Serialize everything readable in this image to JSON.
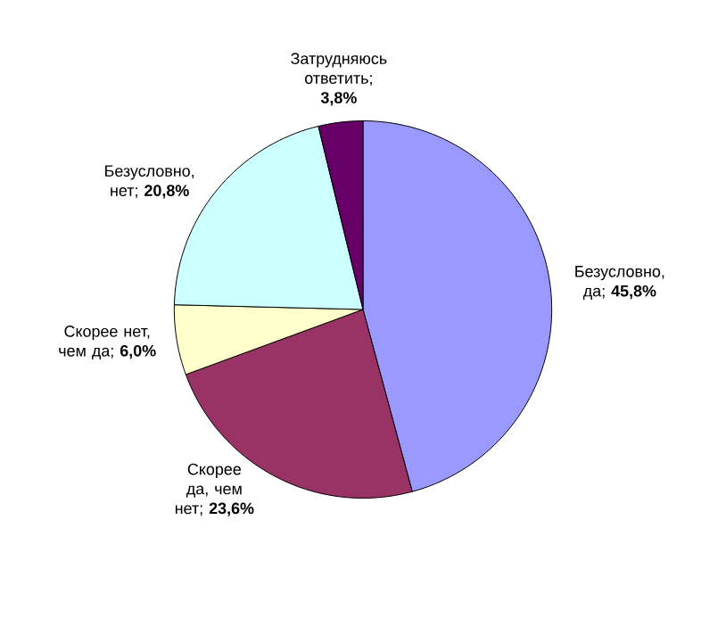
{
  "chart_data": {
    "type": "pie",
    "categories": [
      "Безусловно, да",
      "Скорее да, чем нет",
      "Скорее нет, чем да",
      "Безусловно, нет",
      "Затрудняюсь ответить"
    ],
    "values": [
      45.8,
      23.6,
      6.0,
      20.8,
      3.8
    ],
    "value_labels": [
      "; **45,8%**",
      "; **23,6%**",
      "; **6,0%**",
      "; **20,8%**",
      "; **3,8%**"
    ],
    "colors": [
      "#9999ff",
      "#993366",
      "#ffffcc",
      "#ccffff",
      "#660066"
    ]
  }
}
